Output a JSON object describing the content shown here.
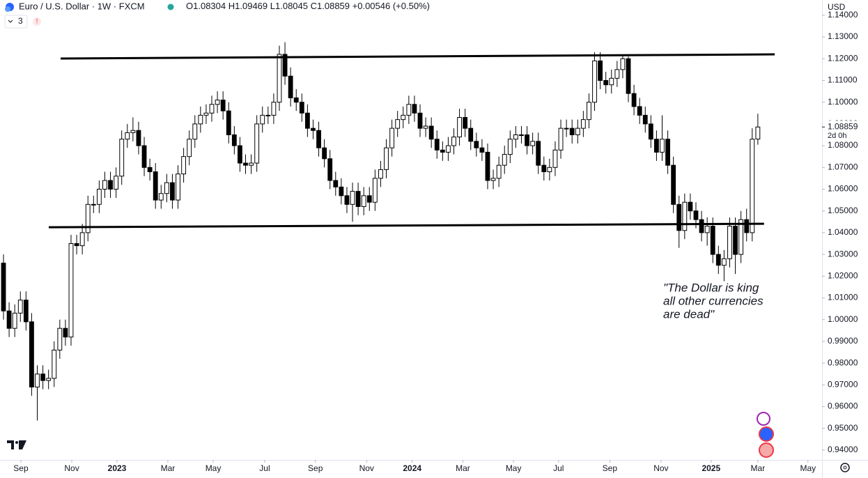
{
  "header": {
    "title": "Euro / U.S. Dollar · 1W · FXCM",
    "ohlc_letters": [
      "O",
      "H",
      "L",
      "C"
    ],
    "change": "+0.00546 (+0.50%)",
    "indicator_count": "3",
    "alert": "!"
  },
  "axis_currency": "USD",
  "countdown": "2d 0h",
  "chart_data": {
    "type": "candlestick",
    "open": [
      1.026,
      1.004,
      0.996,
      1.003,
      1.009,
      0.999,
      0.969,
      0.975,
      0.972,
      0.973,
      0.986,
      0.996,
      0.992,
      1.035,
      1.034,
      1.04,
      1.053,
      1.053,
      1.06,
      1.064,
      1.06,
      1.066,
      1.083,
      1.086,
      1.087,
      1.08,
      1.07,
      1.068,
      1.055,
      1.058,
      1.063,
      1.055,
      1.067,
      1.075,
      1.083,
      1.09,
      1.094,
      1.095,
      1.099,
      1.101,
      1.096,
      1.085,
      1.08,
      1.072,
      1.071,
      1.072,
      1.09,
      1.094,
      1.094,
      1.1,
      1.122,
      1.112,
      1.102,
      1.1,
      1.095,
      1.088,
      1.087,
      1.079,
      1.074,
      1.064,
      1.061,
      1.057,
      1.053,
      1.059,
      1.052,
      1.057,
      1.054,
      1.065,
      1.069,
      1.079,
      1.088,
      1.092,
      1.094,
      1.099,
      1.095,
      1.088,
      1.089,
      1.083,
      1.078,
      1.077,
      1.08,
      1.084,
      1.093,
      1.088,
      1.082,
      1.079,
      1.077,
      1.064,
      1.065,
      1.071,
      1.076,
      1.083,
      1.085,
      1.085,
      1.08,
      1.082,
      1.071,
      1.068,
      1.07,
      1.078,
      1.088,
      1.088,
      1.085,
      1.088,
      1.092,
      1.1,
      1.119,
      1.11,
      1.108,
      1.111,
      1.115,
      1.12,
      1.104,
      1.098,
      1.094,
      1.09,
      1.083,
      1.077,
      1.083,
      1.071,
      1.053,
      1.041,
      1.054,
      1.05,
      1.046,
      1.04,
      1.043,
      1.03,
      1.025,
      1.028,
      1.043,
      1.03,
      1.046,
      1.04,
      1.08304
    ],
    "high": [
      1.03,
      1.008,
      1.007,
      1.013,
      1.013,
      1.003,
      0.979,
      0.979,
      0.977,
      0.99,
      1.0,
      1.0,
      1.039,
      1.039,
      1.044,
      1.057,
      1.057,
      1.064,
      1.068,
      1.068,
      1.07,
      1.087,
      1.09,
      1.093,
      1.091,
      1.084,
      1.074,
      1.072,
      1.062,
      1.067,
      1.067,
      1.071,
      1.079,
      1.087,
      1.094,
      1.098,
      1.099,
      1.103,
      1.105,
      1.105,
      1.1,
      1.089,
      1.084,
      1.076,
      1.076,
      1.094,
      1.098,
      1.098,
      1.104,
      1.126,
      1.1276,
      1.116,
      1.106,
      1.104,
      1.099,
      1.092,
      1.091,
      1.083,
      1.078,
      1.068,
      1.065,
      1.061,
      1.063,
      1.063,
      1.061,
      1.061,
      1.069,
      1.073,
      1.083,
      1.092,
      1.096,
      1.098,
      1.103,
      1.103,
      1.099,
      1.093,
      1.093,
      1.087,
      1.082,
      1.084,
      1.088,
      1.097,
      1.097,
      1.092,
      1.086,
      1.083,
      1.081,
      1.069,
      1.075,
      1.08,
      1.087,
      1.089,
      1.089,
      1.089,
      1.086,
      1.086,
      1.075,
      1.074,
      1.082,
      1.092,
      1.092,
      1.092,
      1.092,
      1.096,
      1.104,
      1.123,
      1.123,
      1.114,
      1.115,
      1.119,
      1.1214,
      1.121,
      1.108,
      1.102,
      1.098,
      1.094,
      1.087,
      1.094,
      1.087,
      1.075,
      1.057,
      1.058,
      1.058,
      1.054,
      1.05,
      1.047,
      1.047,
      1.034,
      1.032,
      1.047,
      1.047,
      1.05,
      1.051,
      1.088,
      1.09469
    ],
    "low": [
      1.0,
      0.992,
      0.992,
      0.999,
      0.995,
      0.965,
      0.9536,
      0.968,
      0.968,
      0.969,
      0.982,
      0.988,
      0.988,
      1.03,
      1.03,
      1.036,
      1.049,
      1.049,
      1.056,
      1.056,
      1.056,
      1.062,
      1.079,
      1.082,
      1.076,
      1.066,
      1.064,
      1.051,
      1.051,
      1.054,
      1.051,
      1.051,
      1.063,
      1.071,
      1.079,
      1.086,
      1.09,
      1.091,
      1.095,
      1.092,
      1.081,
      1.076,
      1.068,
      1.067,
      1.067,
      1.068,
      1.086,
      1.09,
      1.09,
      1.096,
      1.108,
      1.098,
      1.096,
      1.091,
      1.084,
      1.083,
      1.075,
      1.07,
      1.06,
      1.057,
      1.053,
      1.049,
      1.045,
      1.048,
      1.048,
      1.05,
      1.05,
      1.061,
      1.065,
      1.075,
      1.084,
      1.088,
      1.09,
      1.091,
      1.084,
      1.084,
      1.079,
      1.074,
      1.073,
      1.073,
      1.076,
      1.08,
      1.084,
      1.078,
      1.075,
      1.073,
      1.06,
      1.06,
      1.061,
      1.067,
      1.072,
      1.079,
      1.081,
      1.076,
      1.076,
      1.067,
      1.064,
      1.064,
      1.066,
      1.074,
      1.084,
      1.081,
      1.081,
      1.084,
      1.088,
      1.096,
      1.106,
      1.104,
      1.104,
      1.107,
      1.111,
      1.1,
      1.094,
      1.09,
      1.086,
      1.079,
      1.073,
      1.073,
      1.067,
      1.049,
      1.033,
      1.037,
      1.046,
      1.042,
      1.036,
      1.034,
      1.026,
      1.021,
      1.0177,
      1.024,
      1.021,
      1.026,
      1.036,
      1.036,
      1.08045
    ],
    "close": [
      1.004,
      0.996,
      1.003,
      1.009,
      0.999,
      0.969,
      0.975,
      0.972,
      0.973,
      0.986,
      0.996,
      0.992,
      1.035,
      1.034,
      1.04,
      1.053,
      1.053,
      1.06,
      1.064,
      1.06,
      1.066,
      1.083,
      1.086,
      1.087,
      1.08,
      1.07,
      1.068,
      1.055,
      1.058,
      1.063,
      1.055,
      1.067,
      1.075,
      1.083,
      1.09,
      1.094,
      1.095,
      1.099,
      1.101,
      1.096,
      1.085,
      1.08,
      1.072,
      1.071,
      1.072,
      1.09,
      1.094,
      1.094,
      1.1,
      1.122,
      1.112,
      1.102,
      1.1,
      1.095,
      1.088,
      1.087,
      1.079,
      1.074,
      1.064,
      1.061,
      1.057,
      1.053,
      1.059,
      1.052,
      1.057,
      1.054,
      1.065,
      1.069,
      1.079,
      1.088,
      1.092,
      1.094,
      1.099,
      1.095,
      1.088,
      1.089,
      1.083,
      1.078,
      1.077,
      1.08,
      1.084,
      1.093,
      1.088,
      1.082,
      1.079,
      1.077,
      1.064,
      1.065,
      1.071,
      1.076,
      1.083,
      1.085,
      1.085,
      1.08,
      1.082,
      1.071,
      1.068,
      1.07,
      1.078,
      1.088,
      1.088,
      1.085,
      1.088,
      1.092,
      1.1,
      1.119,
      1.11,
      1.108,
      1.111,
      1.115,
      1.12,
      1.104,
      1.098,
      1.094,
      1.09,
      1.083,
      1.077,
      1.083,
      1.071,
      1.053,
      1.041,
      1.054,
      1.05,
      1.046,
      1.04,
      1.043,
      1.03,
      1.025,
      1.028,
      1.043,
      1.03,
      1.046,
      1.04,
      1.083,
      1.08859
    ],
    "up_color": "#ffffff",
    "down_color": "#000000",
    "border_color": "#000000",
    "xlim": [
      -0.62,
      145.4
    ],
    "xticks": [
      {
        "value": 3.09,
        "label": "Sep"
      },
      {
        "value": 12.13,
        "label": "Nov"
      },
      {
        "value": 20.17,
        "label": "2023"
      },
      {
        "value": 29.2,
        "label": "Mar"
      },
      {
        "value": 37.25,
        "label": "May"
      },
      {
        "value": 46.4,
        "label": "Jul"
      },
      {
        "value": 55.4,
        "label": "Sep"
      },
      {
        "value": 64.5,
        "label": "Nov"
      },
      {
        "value": 72.6,
        "label": "2024"
      },
      {
        "value": 81.6,
        "label": "Mar"
      },
      {
        "value": 90.6,
        "label": "May"
      },
      {
        "value": 98.6,
        "label": "Jul"
      },
      {
        "value": 107.7,
        "label": "Sep"
      },
      {
        "value": 116.8,
        "label": "Nov"
      },
      {
        "value": 125.7,
        "label": "2025"
      },
      {
        "value": 134.0,
        "label": "Mar"
      },
      {
        "value": 142.9,
        "label": "May"
      }
    ],
    "ylim": [
      0.9355,
      1.147
    ],
    "yticks": [
      {
        "value": 0.94,
        "label": "0.94000"
      },
      {
        "value": 0.95,
        "label": "0.95000"
      },
      {
        "value": 0.96,
        "label": "0.96000"
      },
      {
        "value": 0.97,
        "label": "0.97000"
      },
      {
        "value": 0.98,
        "label": "0.98000"
      },
      {
        "value": 0.99,
        "label": "0.99000"
      },
      {
        "value": 1.0,
        "label": "1.00000"
      },
      {
        "value": 1.01,
        "label": "1.01000"
      },
      {
        "value": 1.02,
        "label": "1.02000"
      },
      {
        "value": 1.03,
        "label": "1.03000"
      },
      {
        "value": 1.04,
        "label": "1.04000"
      },
      {
        "value": 1.05,
        "label": "1.05000"
      },
      {
        "value": 1.06,
        "label": "1.06000"
      },
      {
        "value": 1.07,
        "label": "1.07000"
      },
      {
        "value": 1.08,
        "label": "1.08000"
      },
      {
        "value": 1.09,
        "label": "1.09000"
      },
      {
        "value": 1.1,
        "label": "1.10000"
      },
      {
        "value": 1.11,
        "label": "1.11000"
      },
      {
        "value": 1.12,
        "label": "1.12000"
      },
      {
        "value": 1.13,
        "label": "1.13000"
      },
      {
        "value": 1.14,
        "label": "1.14000"
      }
    ],
    "lines": [
      {
        "x": [
          10.15,
          137.0
        ],
        "y": [
          1.1201,
          1.122
        ],
        "color": "#000000"
      },
      {
        "x": [
          8.04,
          135.1
        ],
        "y": [
          1.0425,
          1.0441
        ],
        "color": "#000000"
      }
    ],
    "annotation": [
      "\"The Dollar is king",
      "all other currencies",
      "are dead\""
    ]
  }
}
